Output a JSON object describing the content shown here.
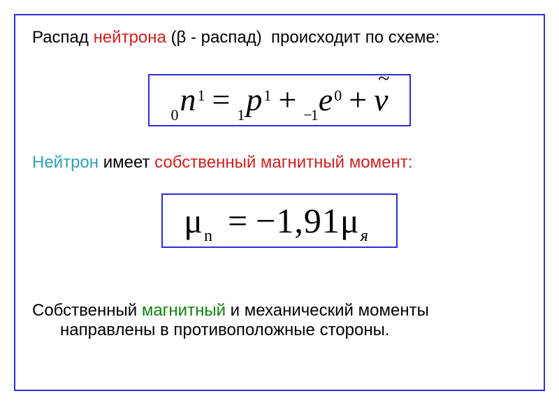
{
  "colors": {
    "frame_border": "#2e2ed6",
    "text": "#000000",
    "highlight_red": "#d02020",
    "highlight_cyan": "#30a0b0",
    "highlight_green": "#108010",
    "background": "#ffffff"
  },
  "fonts": {
    "body_family": "Arial",
    "equation_family": "Times New Roman",
    "body_size_pt": 18,
    "equation_size_pt": 34
  },
  "intro": {
    "word1": "Распад",
    "word2": "нейтрона",
    "rest": "(β - распад)  происходит по схеме:"
  },
  "equation1": {
    "terms": [
      {
        "sub_left": "0",
        "symbol": "n",
        "sup_right": "1"
      },
      {
        "op": "="
      },
      {
        "sub_left": "1",
        "symbol": "p",
        "sup_right": "1"
      },
      {
        "op": "+"
      },
      {
        "sub_left": "−1",
        "symbol": "e",
        "sup_right": "0"
      },
      {
        "op": "+"
      },
      {
        "symbol": "ν",
        "overset": "~"
      }
    ]
  },
  "mid": {
    "word1": "Нейтрон",
    "plain1": "имеет",
    "word2": "собственный магнитный момент:"
  },
  "equation2": {
    "lhs_symbol": "μ",
    "lhs_sub": "n",
    "op": "=",
    "rhs_value": "−1,91",
    "rhs_symbol": "μ",
    "rhs_sub": "я"
  },
  "bottom": {
    "line1a": "Собственный",
    "line1b": "магнитный",
    "line1c": "и механический моменты",
    "line2": "направлены в противоположные стороны."
  }
}
